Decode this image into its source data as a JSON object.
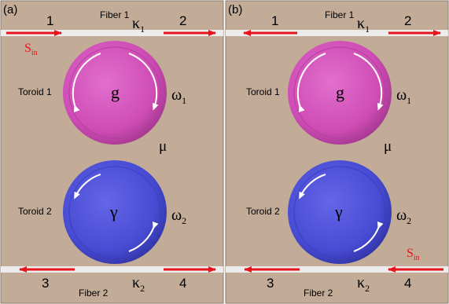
{
  "colors": {
    "background": "#c2ab97",
    "fiber": "#ececec",
    "arrow": "#e8141c",
    "toroid_gain": "#d14fb8",
    "toroid_loss": "#4b4fd6",
    "text": "#000000",
    "source_text": "#e8141c"
  },
  "panels": [
    {
      "label": "(a)",
      "fiber1_label": "Fiber 1",
      "fiber2_label": "Fiber 2",
      "toroid1_label": "Toroid 1",
      "toroid2_label": "Toroid 2",
      "gain_symbol": "g",
      "loss_symbol": "γ",
      "port1": "1",
      "port2": "2",
      "port3": "3",
      "port4": "4",
      "kappa1": "κ",
      "kappa1_sub": "1",
      "kappa2": "κ",
      "kappa2_sub": "2",
      "omega1": "ω",
      "omega1_sub": "1",
      "omega2": "ω",
      "omega2_sub": "2",
      "coupling": "μ",
      "source": "S",
      "source_sub": "in",
      "source_port": "1"
    },
    {
      "label": "(b)",
      "fiber1_label": "Fiber 1",
      "fiber2_label": "Fiber 2",
      "toroid1_label": "Toroid 1",
      "toroid2_label": "Toroid 2",
      "gain_symbol": "g",
      "loss_symbol": "γ",
      "port1": "1",
      "port2": "2",
      "port3": "3",
      "port4": "4",
      "kappa1": "κ",
      "kappa1_sub": "1",
      "kappa2": "κ",
      "kappa2_sub": "2",
      "omega1": "ω",
      "omega1_sub": "1",
      "omega2": "ω",
      "omega2_sub": "2",
      "coupling": "μ",
      "source": "S",
      "source_sub": "in",
      "source_port": "4"
    }
  ]
}
